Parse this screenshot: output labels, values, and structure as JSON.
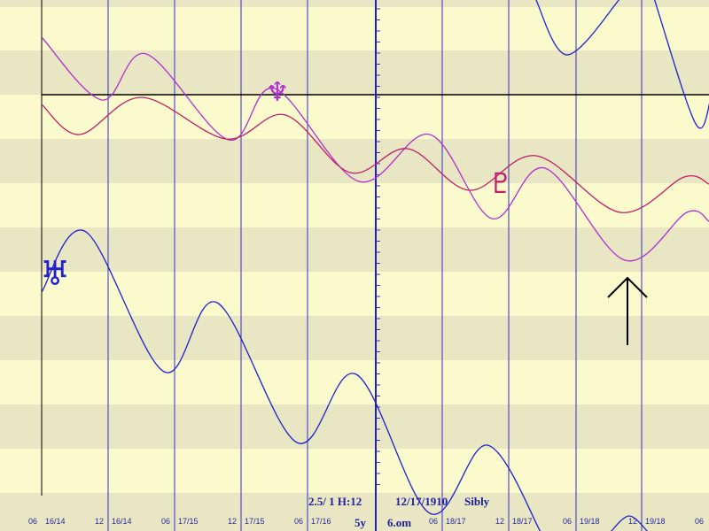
{
  "glyphs": {
    "neptune": "♆",
    "pluto": "♇",
    "uranus": "♅"
  },
  "x_labels": [
    {
      "hour": "06",
      "date": "16/14"
    },
    {
      "hour": "12",
      "date": "16/14"
    },
    {
      "hour": "06",
      "date": "17/15"
    },
    {
      "hour": "12",
      "date": "17/15"
    },
    {
      "hour": "06",
      "date": "17/16"
    },
    {
      "hour": "06",
      "date": "18/17"
    },
    {
      "hour": "12",
      "date": "18/17"
    },
    {
      "hour": "06",
      "date": "19/18"
    },
    {
      "hour": "12",
      "date": "19/18"
    },
    {
      "hour": "06"
    }
  ],
  "footer": {
    "scale": "2.5/ 1 H:12",
    "date": "12/17/1910",
    "system": "Sibly",
    "span": "5y",
    "orb": "6.om"
  }
}
